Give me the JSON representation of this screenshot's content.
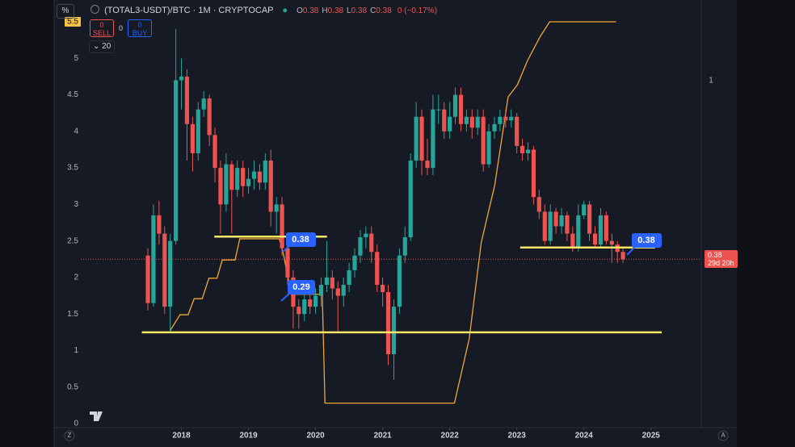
{
  "toolbar": {
    "scale_button": "%",
    "symbol": "(TOTAL3-USDT)/BTC · 1M · CRYPTOCAP",
    "ohlc": [
      {
        "label": "O",
        "value": "0.38"
      },
      {
        "label": "H",
        "value": "0.38"
      },
      {
        "label": "L",
        "value": "0.38"
      },
      {
        "label": "C",
        "value": "0.38"
      }
    ],
    "change": "0 (−0.17%)",
    "sell": {
      "count": "0",
      "label": "SELL"
    },
    "spread": "0",
    "buy": {
      "count": "0",
      "label": "BUY"
    },
    "indicator_count": "20"
  },
  "chart_data": {
    "type": "candlestick",
    "x": [
      2017.5,
      2017.583,
      2017.667,
      2017.75,
      2017.833,
      2017.917,
      2018,
      2018.083,
      2018.167,
      2018.25,
      2018.333,
      2018.417,
      2018.5,
      2018.583,
      2018.667,
      2018.75,
      2018.833,
      2018.917,
      2019,
      2019.083,
      2019.167,
      2019.25,
      2019.333,
      2019.417,
      2019.5,
      2019.583,
      2019.667,
      2019.75,
      2019.833,
      2019.917,
      2020,
      2020.083,
      2020.167,
      2020.25,
      2020.333,
      2020.417,
      2020.5,
      2020.583,
      2020.667,
      2020.75,
      2020.833,
      2020.917,
      2021,
      2021.083,
      2021.167,
      2021.25,
      2021.333,
      2021.417,
      2021.5,
      2021.583,
      2021.667,
      2021.75,
      2021.833,
      2021.917,
      2022,
      2022.083,
      2022.167,
      2022.25,
      2022.333,
      2022.417,
      2022.5,
      2022.583,
      2022.667,
      2022.75,
      2022.833,
      2022.917,
      2023,
      2023.083,
      2023.167,
      2023.25,
      2023.333,
      2023.417,
      2023.5,
      2023.583,
      2023.667,
      2023.75,
      2023.833,
      2023.917,
      2024,
      2024.083,
      2024.167,
      2024.25,
      2024.333,
      2024.417,
      2024.5,
      2024.583
    ],
    "open": [
      2.3,
      1.65,
      2.85,
      2.6,
      1.6,
      2.5,
      4.7,
      4.75,
      4.1,
      3.7,
      4.3,
      4.45,
      3.95,
      3.5,
      3.0,
      3.55,
      3.2,
      3.5,
      3.25,
      3.35,
      3.45,
      3.3,
      3.6,
      2.9,
      3.0,
      2.4,
      2.0,
      1.6,
      1.5,
      1.7,
      1.6,
      1.75,
      1.9,
      2.0,
      1.85,
      1.75,
      1.9,
      2.1,
      2.3,
      2.55,
      2.6,
      2.35,
      1.9,
      1.8,
      0.95,
      1.6,
      2.3,
      2.55,
      3.6,
      4.2,
      3.6,
      3.5,
      4.3,
      4.3,
      4.0,
      4.2,
      4.5,
      4.1,
      4.2,
      4.05,
      4.2,
      3.55,
      4.0,
      4.1,
      4.2,
      4.15,
      4.2,
      3.8,
      3.7,
      3.75,
      3.1,
      2.9,
      2.5,
      2.9,
      2.7,
      2.85,
      2.6,
      2.4,
      2.85,
      3.0,
      2.6,
      2.45,
      2.85,
      2.5,
      2.45,
      2.35
    ],
    "high": [
      2.4,
      3.0,
      3.05,
      2.7,
      2.6,
      5.4,
      5.0,
      4.85,
      4.2,
      4.4,
      4.55,
      4.5,
      4.05,
      3.6,
      3.7,
      3.6,
      3.6,
      3.6,
      3.5,
      3.6,
      3.55,
      3.7,
      3.75,
      3.1,
      3.1,
      2.5,
      2.1,
      1.7,
      1.8,
      1.8,
      1.85,
      2.0,
      2.5,
      2.1,
      1.95,
      2.0,
      2.2,
      2.4,
      2.65,
      2.7,
      2.7,
      2.45,
      2.0,
      1.9,
      1.7,
      2.4,
      2.7,
      3.7,
      4.4,
      4.3,
      3.9,
      4.5,
      4.5,
      4.4,
      4.4,
      4.6,
      4.6,
      4.3,
      4.3,
      4.3,
      4.3,
      4.1,
      4.2,
      4.3,
      4.3,
      4.3,
      4.25,
      3.9,
      3.85,
      3.8,
      3.2,
      3.0,
      3.0,
      2.95,
      2.95,
      2.9,
      2.7,
      3.0,
      3.05,
      3.05,
      2.7,
      2.95,
      2.9,
      2.6,
      2.5,
      2.4
    ],
    "low": [
      1.55,
      1.6,
      2.45,
      1.5,
      1.25,
      2.45,
      4.3,
      3.6,
      3.45,
      3.6,
      4.2,
      3.8,
      3.3,
      2.6,
      2.9,
      2.6,
      3.1,
      3.1,
      3.15,
      3.2,
      3.2,
      3.2,
      2.7,
      2.6,
      2.3,
      1.9,
      1.3,
      1.3,
      1.4,
      1.5,
      1.5,
      1.6,
      1.8,
      1.7,
      1.25,
      1.6,
      1.8,
      2.0,
      2.2,
      2.4,
      2.2,
      1.8,
      1.6,
      0.8,
      0.6,
      1.5,
      2.2,
      2.5,
      3.5,
      3.4,
      3.4,
      3.4,
      4.1,
      3.9,
      3.9,
      4.1,
      4.0,
      4.0,
      3.9,
      3.95,
      3.45,
      3.5,
      3.9,
      4.0,
      4.05,
      4.05,
      3.7,
      3.6,
      3.6,
      3.0,
      2.8,
      2.45,
      2.45,
      2.6,
      2.6,
      2.5,
      2.35,
      2.35,
      2.8,
      2.5,
      2.4,
      2.4,
      2.45,
      2.2,
      2.2,
      2.2
    ],
    "close": [
      1.65,
      2.85,
      2.6,
      1.6,
      2.5,
      4.7,
      4.75,
      4.1,
      3.7,
      4.3,
      4.45,
      3.95,
      3.5,
      3.0,
      3.55,
      3.2,
      3.5,
      3.25,
      3.35,
      3.45,
      3.3,
      3.6,
      2.9,
      3.0,
      2.4,
      2.0,
      1.6,
      1.5,
      1.7,
      1.6,
      1.75,
      1.9,
      2.0,
      1.85,
      1.75,
      1.9,
      2.1,
      2.3,
      2.55,
      2.6,
      2.35,
      1.9,
      1.8,
      0.95,
      1.6,
      2.3,
      2.55,
      3.6,
      4.2,
      3.6,
      3.5,
      4.3,
      4.3,
      4.0,
      4.2,
      4.5,
      4.1,
      4.2,
      4.05,
      4.2,
      3.55,
      4.0,
      4.1,
      4.2,
      4.15,
      4.2,
      3.8,
      3.7,
      3.75,
      3.1,
      2.9,
      2.5,
      2.9,
      2.7,
      2.85,
      2.6,
      2.4,
      2.85,
      3.0,
      2.6,
      2.45,
      2.85,
      2.5,
      2.45,
      2.35,
      2.25
    ],
    "up_color": "#26a69a",
    "down_color": "#ef5350",
    "line": {
      "color": "#f0a830",
      "x": [
        2017.83,
        2017.98,
        2018.1,
        2018.19,
        2018.31,
        2018.41,
        2018.53,
        2018.61,
        2018.8,
        2018.87,
        2019.46,
        2019.52,
        2019.64,
        2020.1,
        2020.14,
        2022.07,
        2022.29,
        2022.47,
        2022.67,
        2022.87,
        2023.01,
        2023.16,
        2023.35,
        2023.49,
        2024.48
      ],
      "values": [
        1.27,
        1.49,
        1.49,
        1.71,
        1.71,
        1.99,
        1.99,
        2.24,
        2.24,
        2.53,
        2.53,
        2.32,
        1.77,
        1.77,
        0.28,
        0.28,
        1.16,
        2.48,
        3.26,
        4.47,
        4.64,
        4.97,
        5.3,
        5.5,
        5.5
      ]
    },
    "levels": [
      {
        "value": 1.25,
        "x": [
          2017.41,
          2025.16
        ]
      },
      {
        "value": 2.56,
        "x": [
          2018.49,
          2020.17
        ]
      },
      {
        "value": 2.41,
        "x": [
          2023.05,
          2025.06
        ]
      }
    ],
    "level_color": "#f5e663",
    "xlim": [
      2016.5,
      2025.75
    ],
    "ylim": [
      0,
      5.5
    ],
    "xticks": [
      2018,
      2019,
      2020,
      2021,
      2022,
      2023,
      2024,
      2025
    ],
    "yticks": [
      0,
      0.5,
      1,
      1.5,
      2,
      2.5,
      3,
      3.5,
      4,
      4.5,
      5,
      5.5
    ],
    "grid": false
  },
  "callouts": [
    "0.38",
    "0.29",
    "0.38"
  ],
  "price_tag": {
    "price": "0.38",
    "countdown": "29d 20h"
  },
  "right_scale_label": "1",
  "corner_buttons": [
    "Z",
    "A"
  ]
}
